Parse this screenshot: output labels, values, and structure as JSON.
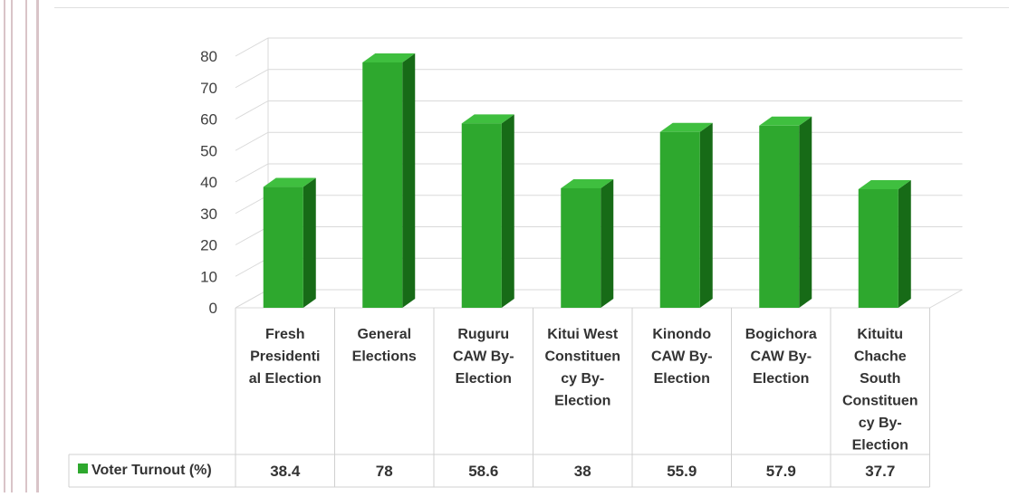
{
  "chart_data": {
    "type": "bar",
    "title": "",
    "xlabel": "",
    "ylabel": "",
    "ylim": [
      0,
      80
    ],
    "yticks": [
      0,
      10,
      20,
      30,
      40,
      50,
      60,
      70,
      80
    ],
    "grid": true,
    "categories": [
      [
        "Fresh",
        "Presidenti",
        "al Election"
      ],
      [
        "General",
        "Elections"
      ],
      [
        "Ruguru",
        "CAW By-",
        "Election"
      ],
      [
        "Kitui West",
        "Constituen",
        "cy By-",
        "Election"
      ],
      [
        "Kinondo",
        "CAW By-",
        "Election"
      ],
      [
        "Bogichora",
        "CAW By-",
        "Election"
      ],
      [
        "Kituitu",
        "Chache",
        "South",
        "Constituen",
        "cy By-",
        "Election"
      ]
    ],
    "series": [
      {
        "name": "Voter Turnout (%)",
        "values": [
          38.4,
          78,
          58.6,
          38,
          55.9,
          57.9,
          37.7
        ],
        "value_labels": [
          "38.4",
          "78",
          "58.6",
          "38",
          "55.9",
          "57.9",
          "37.7"
        ],
        "color": "#2ea82e"
      }
    ],
    "legend": "data-table-left"
  }
}
